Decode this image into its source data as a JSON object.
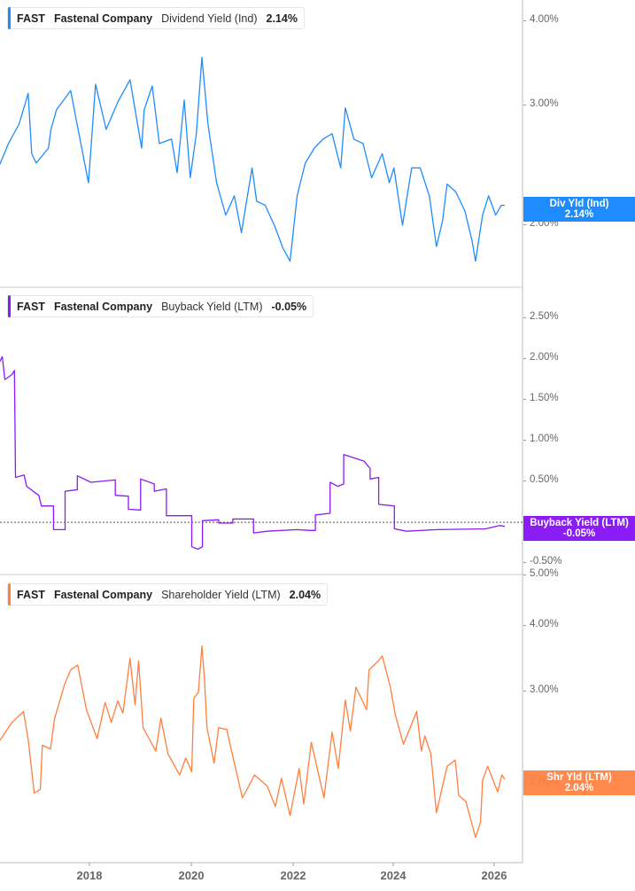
{
  "chart_data": [
    {
      "type": "line",
      "ticker": "FAST",
      "company": "Fastenal Company",
      "metric": "Dividend Yield (Ind)",
      "last_value": "2.14%",
      "badge_label": "Div Yld (Ind)",
      "color": "#1e8cff",
      "yscale": "log",
      "ylim": [
        1.62,
        4.3
      ],
      "yticks": [
        "4.00%",
        "3.00%",
        "2.00%"
      ],
      "ytick_values": [
        4,
        3,
        2
      ],
      "x": [
        2016.23,
        2016.4,
        2016.61,
        2016.79,
        2016.86,
        2016.95,
        2017.19,
        2017.24,
        2017.35,
        2017.63,
        2017.72,
        2017.98,
        2018.12,
        2018.33,
        2018.56,
        2018.8,
        2019.03,
        2019.08,
        2019.24,
        2019.38,
        2019.62,
        2019.73,
        2019.87,
        2019.99,
        2020.11,
        2020.22,
        2020.34,
        2020.51,
        2020.69,
        2020.86,
        2021.0,
        2021.21,
        2021.3,
        2021.47,
        2021.65,
        2021.82,
        2021.96,
        2022.1,
        2022.26,
        2022.44,
        2022.61,
        2022.79,
        2022.96,
        2023.05,
        2023.22,
        2023.4,
        2023.57,
        2023.78,
        2023.92,
        2024.01,
        2024.18,
        2024.36,
        2024.53,
        2024.71,
        2024.85,
        2024.97,
        2025.06,
        2025.23,
        2025.41,
        2025.55,
        2025.62,
        2025.76,
        2025.88,
        2026.02,
        2026.13,
        2026.2
      ],
      "values": [
        2.46,
        2.64,
        2.82,
        3.13,
        2.55,
        2.47,
        2.6,
        2.77,
        2.96,
        3.16,
        2.91,
        2.31,
        3.23,
        2.77,
        3.04,
        3.28,
        2.6,
        2.96,
        3.21,
        2.64,
        2.68,
        2.39,
        3.06,
        2.35,
        2.73,
        3.54,
        2.82,
        2.31,
        2.07,
        2.21,
        1.95,
        2.43,
        2.17,
        2.14,
        2.0,
        1.85,
        1.77,
        2.21,
        2.47,
        2.6,
        2.68,
        2.73,
        2.43,
        2.98,
        2.68,
        2.64,
        2.35,
        2.55,
        2.31,
        2.43,
        2.0,
        2.43,
        2.43,
        2.21,
        1.86,
        2.03,
        2.3,
        2.24,
        2.1,
        1.9,
        1.77,
        2.07,
        2.21,
        2.07,
        2.14,
        2.14
      ]
    },
    {
      "type": "line",
      "ticker": "FAST",
      "company": "Fastenal Company",
      "metric": "Buyback Yield (LTM)",
      "last_value": "-0.05%",
      "badge_label": "Buyback Yield (LTM)",
      "color": "#8a1cf5",
      "yscale": "linear",
      "ylim": [
        -0.64,
        2.87
      ],
      "yticks": [
        "2.50%",
        "2.00%",
        "1.50%",
        "1.00%",
        "0.50%",
        "-0.50%"
      ],
      "ytick_values": [
        2.5,
        2,
        1.5,
        1,
        0.5,
        -0.5
      ],
      "reference_line": 0,
      "x": [
        2016.23,
        2016.28,
        2016.33,
        2016.47,
        2016.52,
        2016.54,
        2016.71,
        2016.76,
        2017.0,
        2017.05,
        2017.29,
        2017.29,
        2017.52,
        2017.52,
        2017.76,
        2017.76,
        2018.03,
        2018.51,
        2018.51,
        2018.77,
        2018.77,
        2019.01,
        2019.01,
        2019.28,
        2019.28,
        2019.52,
        2019.52,
        2020.02,
        2020.02,
        2020.14,
        2020.23,
        2020.23,
        2020.55,
        2020.55,
        2020.83,
        2020.83,
        2021.24,
        2021.24,
        2021.51,
        2022.1,
        2022.34,
        2022.46,
        2022.46,
        2022.75,
        2022.75,
        2022.9,
        2023.02,
        2023.02,
        2023.42,
        2023.54,
        2023.54,
        2023.71,
        2023.71,
        2024.02,
        2024.02,
        2024.26,
        2024.86,
        2025.82,
        2026.1,
        2026.2
      ],
      "values": [
        1.97,
        2.03,
        1.75,
        1.81,
        1.86,
        0.55,
        0.58,
        0.44,
        0.33,
        0.2,
        0.2,
        -0.09,
        -0.09,
        0.38,
        0.4,
        0.57,
        0.49,
        0.52,
        0.33,
        0.32,
        0.16,
        0.15,
        0.53,
        0.47,
        0.38,
        0.41,
        0.08,
        0.08,
        -0.3,
        -0.33,
        -0.3,
        0.02,
        0.03,
        -0.01,
        -0.01,
        0.04,
        0.04,
        -0.13,
        -0.11,
        -0.09,
        -0.1,
        -0.1,
        0.09,
        0.11,
        0.49,
        0.44,
        0.47,
        0.83,
        0.75,
        0.66,
        0.53,
        0.55,
        0.22,
        0.2,
        -0.08,
        -0.11,
        -0.09,
        -0.08,
        -0.04,
        -0.05
      ]
    },
    {
      "type": "line",
      "ticker": "FAST",
      "company": "Fastenal Company",
      "metric": "Shareholder Yield (LTM)",
      "last_value": "2.04%",
      "badge_label": "Shr Yld (LTM)",
      "color": "#ff7f3f",
      "yscale": "log",
      "ylim": [
        1.42,
        5.0
      ],
      "yticks": [
        "5.00%",
        "4.00%",
        "3.00%",
        "2.00%"
      ],
      "ytick_values": [
        5,
        4,
        3,
        2
      ],
      "x": [
        2016.23,
        2016.47,
        2016.7,
        2016.79,
        2016.91,
        2017.03,
        2017.07,
        2017.23,
        2017.31,
        2017.51,
        2017.63,
        2017.77,
        2017.94,
        2018.15,
        2018.31,
        2018.43,
        2018.56,
        2018.66,
        2018.8,
        2018.9,
        2018.97,
        2019.06,
        2019.31,
        2019.41,
        2019.55,
        2019.78,
        2019.9,
        2020.02,
        2020.06,
        2020.15,
        2020.22,
        2020.27,
        2020.32,
        2020.46,
        2020.55,
        2020.71,
        2020.86,
        2021.02,
        2021.26,
        2021.51,
        2021.67,
        2021.79,
        2021.96,
        2022.14,
        2022.23,
        2022.38,
        2022.63,
        2022.79,
        2022.91,
        2023.05,
        2023.15,
        2023.26,
        2023.47,
        2023.52,
        2023.71,
        2023.78,
        2023.94,
        2024.04,
        2024.2,
        2024.46,
        2024.55,
        2024.62,
        2024.74,
        2024.85,
        2025.06,
        2025.22,
        2025.29,
        2025.43,
        2025.62,
        2025.72,
        2025.76,
        2025.86,
        2026.06,
        2026.14,
        2026.2
      ],
      "values": [
        2.42,
        2.62,
        2.75,
        2.43,
        1.92,
        1.95,
        2.37,
        2.33,
        2.66,
        3.1,
        3.3,
        3.37,
        2.77,
        2.44,
        2.86,
        2.62,
        2.88,
        2.73,
        3.47,
        2.83,
        3.43,
        2.56,
        2.31,
        2.67,
        2.28,
        2.08,
        2.24,
        2.11,
        2.91,
        2.99,
        3.67,
        3.18,
        2.56,
        2.19,
        2.56,
        2.54,
        2.19,
        1.88,
        2.08,
        1.98,
        1.81,
        2.05,
        1.74,
        2.14,
        1.83,
        2.4,
        1.88,
        2.51,
        2.14,
        2.89,
        2.52,
        3.06,
        2.77,
        3.3,
        3.44,
        3.51,
        3.06,
        2.7,
        2.38,
        2.75,
        2.31,
        2.47,
        2.28,
        1.76,
        2.16,
        2.22,
        1.9,
        1.85,
        1.58,
        1.69,
        2.03,
        2.16,
        1.93,
        2.08,
        2.04
      ]
    }
  ],
  "x_axis": {
    "tick_labels": [
      "2018",
      "2020",
      "2022",
      "2024",
      "2026"
    ],
    "tick_values": [
      2018,
      2020,
      2022,
      2024,
      2026
    ]
  }
}
